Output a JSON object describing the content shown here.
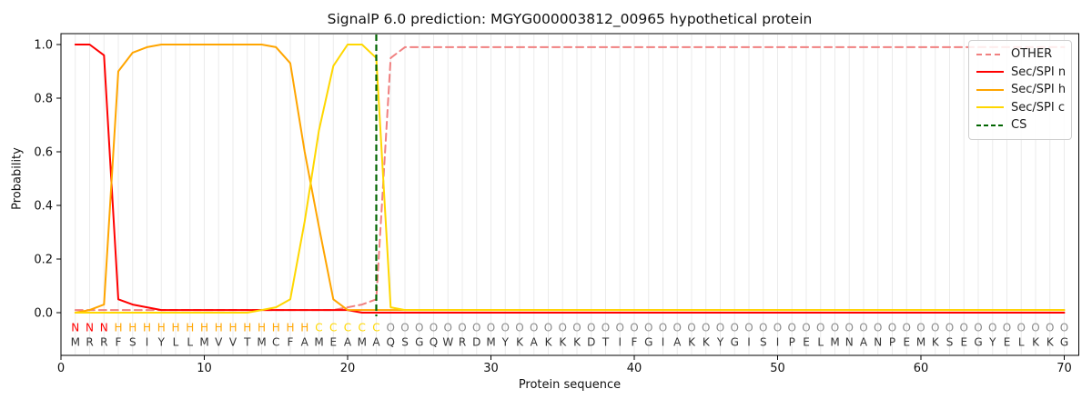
{
  "title": "SignalP 6.0 prediction: MGYG000003812_00965 hypothetical protein",
  "axes": {
    "xlabel": "Protein sequence",
    "ylabel": "Probability",
    "xticks": [
      0,
      10,
      20,
      30,
      40,
      50,
      60,
      70
    ],
    "yticks": [
      0.0,
      0.2,
      0.4,
      0.6,
      0.8,
      1.0
    ],
    "ytick_labels": [
      "0.0",
      "0.2",
      "0.4",
      "0.6",
      "0.8",
      "1.0"
    ]
  },
  "legend": {
    "position": "upper right",
    "items": [
      {
        "label": "OTHER",
        "series": "OTHER"
      },
      {
        "label": "Sec/SPI n",
        "series": "Sec/SPI n"
      },
      {
        "label": "Sec/SPI h",
        "series": "Sec/SPI h"
      },
      {
        "label": "Sec/SPI c",
        "series": "Sec/SPI c"
      },
      {
        "label": "CS",
        "series": "CS"
      }
    ]
  },
  "chart_data": {
    "type": "line",
    "title": "SignalP 6.0 prediction: MGYG000003812_00965 hypothetical protein",
    "xlabel": "Protein sequence",
    "ylabel": "Probability",
    "xlim": [
      0,
      71
    ],
    "ylim": [
      0.0,
      1.0
    ],
    "grid": "vertical line at every residue position, light gray",
    "legend_position": "upper right",
    "positions": "residues 1-70, values indexed in order",
    "sequence": "MRRFSIYLLMVVTMCFAMEAMAQSGQWRDMYKAKKKDTIFGIAKKYGISIPELMNANPEMKSEGYELKKG",
    "region_labels": "NNNHHHHHHHHHHHHHHCCCCCOOOOOOOOOOOOOOOOOOOOOOOOOOOOOOOOOOOOOOOOOOOOOOOO",
    "label_colors": {
      "N": "#ff0000",
      "H": "#ffa500",
      "C": "#ffd700",
      "O": "#8c8c8c"
    },
    "sequence_color": "#333333",
    "cs_position": 22,
    "series": [
      {
        "name": "OTHER",
        "color": "#f08080",
        "style": "dashed",
        "values": [
          0.01,
          0.01,
          0.01,
          0.01,
          0.01,
          0.01,
          0.01,
          0.01,
          0.01,
          0.01,
          0.01,
          0.01,
          0.01,
          0.01,
          0.01,
          0.01,
          0.01,
          0.01,
          0.01,
          0.02,
          0.03,
          0.05,
          0.95,
          0.99,
          0.99,
          0.99,
          0.99,
          0.99,
          0.99,
          0.99,
          0.99,
          0.99,
          0.99,
          0.99,
          0.99,
          0.99,
          0.99,
          0.99,
          0.99,
          0.99,
          0.99,
          0.99,
          0.99,
          0.99,
          0.99,
          0.99,
          0.99,
          0.99,
          0.99,
          0.99,
          0.99,
          0.99,
          0.99,
          0.99,
          0.99,
          0.99,
          0.99,
          0.99,
          0.99,
          0.99,
          0.99,
          0.99,
          0.99,
          0.99,
          0.99,
          0.99,
          0.99,
          0.99,
          0.99,
          0.99
        ]
      },
      {
        "name": "Sec/SPI n",
        "color": "#ff0000",
        "style": "solid",
        "values": [
          1.0,
          1.0,
          0.96,
          0.05,
          0.03,
          0.02,
          0.01,
          0.01,
          0.01,
          0.01,
          0.01,
          0.01,
          0.01,
          0.01,
          0.01,
          0.01,
          0.01,
          0.01,
          0.01,
          0.01,
          0.0,
          0.0,
          0.0,
          0.0,
          0.0,
          0.0,
          0.0,
          0.0,
          0.0,
          0.0,
          0.0,
          0.0,
          0.0,
          0.0,
          0.0,
          0.0,
          0.0,
          0.0,
          0.0,
          0.0,
          0.0,
          0.0,
          0.0,
          0.0,
          0.0,
          0.0,
          0.0,
          0.0,
          0.0,
          0.0,
          0.0,
          0.0,
          0.0,
          0.0,
          0.0,
          0.0,
          0.0,
          0.0,
          0.0,
          0.0,
          0.0,
          0.0,
          0.0,
          0.0,
          0.0,
          0.0,
          0.0,
          0.0,
          0.0,
          0.0
        ]
      },
      {
        "name": "Sec/SPI h",
        "color": "#ffa500",
        "style": "solid",
        "values": [
          0.0,
          0.01,
          0.03,
          0.9,
          0.97,
          0.99,
          1.0,
          1.0,
          1.0,
          1.0,
          1.0,
          1.0,
          1.0,
          1.0,
          0.99,
          0.93,
          0.6,
          0.32,
          0.05,
          0.01,
          0.01,
          0.01,
          0.01,
          0.01,
          0.01,
          0.01,
          0.01,
          0.01,
          0.01,
          0.01,
          0.01,
          0.01,
          0.01,
          0.01,
          0.01,
          0.01,
          0.01,
          0.01,
          0.01,
          0.01,
          0.01,
          0.01,
          0.01,
          0.01,
          0.01,
          0.01,
          0.01,
          0.01,
          0.01,
          0.01,
          0.01,
          0.01,
          0.01,
          0.01,
          0.01,
          0.01,
          0.01,
          0.01,
          0.01,
          0.01,
          0.01,
          0.01,
          0.01,
          0.01,
          0.01,
          0.01,
          0.01,
          0.01,
          0.01,
          0.01
        ]
      },
      {
        "name": "Sec/SPI c",
        "color": "#ffd700",
        "style": "solid",
        "values": [
          0.0,
          0.0,
          0.0,
          0.0,
          0.0,
          0.0,
          0.0,
          0.0,
          0.0,
          0.0,
          0.0,
          0.0,
          0.0,
          0.01,
          0.02,
          0.05,
          0.34,
          0.68,
          0.92,
          1.0,
          1.0,
          0.95,
          0.02,
          0.01,
          0.01,
          0.01,
          0.01,
          0.01,
          0.01,
          0.01,
          0.01,
          0.01,
          0.01,
          0.01,
          0.01,
          0.01,
          0.01,
          0.01,
          0.01,
          0.01,
          0.01,
          0.01,
          0.01,
          0.01,
          0.01,
          0.01,
          0.01,
          0.01,
          0.01,
          0.01,
          0.01,
          0.01,
          0.01,
          0.01,
          0.01,
          0.01,
          0.01,
          0.01,
          0.01,
          0.01,
          0.01,
          0.01,
          0.01,
          0.01,
          0.01,
          0.01,
          0.01,
          0.01,
          0.01,
          0.01
        ]
      },
      {
        "name": "CS",
        "color": "#006400",
        "style": "dashed-vline",
        "x": 22
      }
    ]
  }
}
